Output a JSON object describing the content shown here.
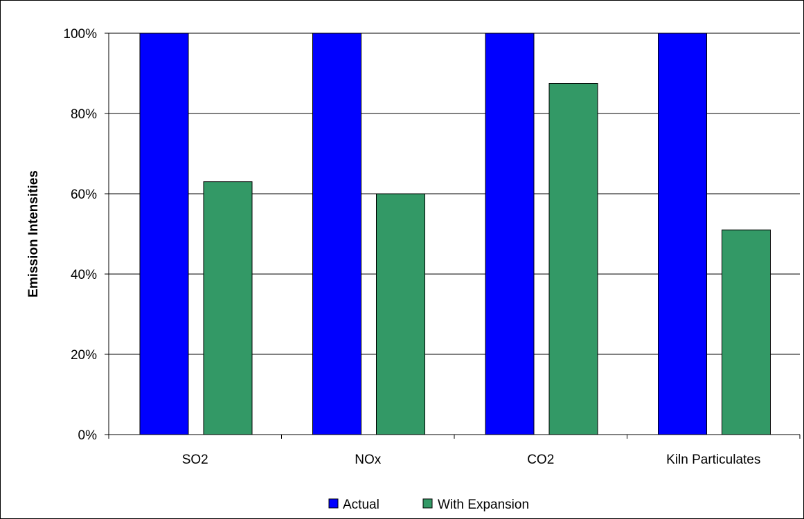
{
  "chart_data": {
    "type": "bar",
    "ylabel": "Emission Intensities",
    "xlabel": "",
    "ylim": [
      0,
      100
    ],
    "y_ticks": [
      "0%",
      "20%",
      "40%",
      "60%",
      "80%",
      "100%"
    ],
    "y_tick_values": [
      0,
      20,
      40,
      60,
      80,
      100
    ],
    "categories": [
      "SO2",
      "NOx",
      "CO2",
      "Kiln Particulates"
    ],
    "series": [
      {
        "name": "Actual",
        "color": "#0000FF",
        "values": [
          100,
          100,
          100,
          100
        ]
      },
      {
        "name": "With Expansion",
        "color": "#339966",
        "values": [
          63,
          60,
          87.5,
          51
        ]
      }
    ],
    "grid": true,
    "legend_position": "bottom-center"
  }
}
